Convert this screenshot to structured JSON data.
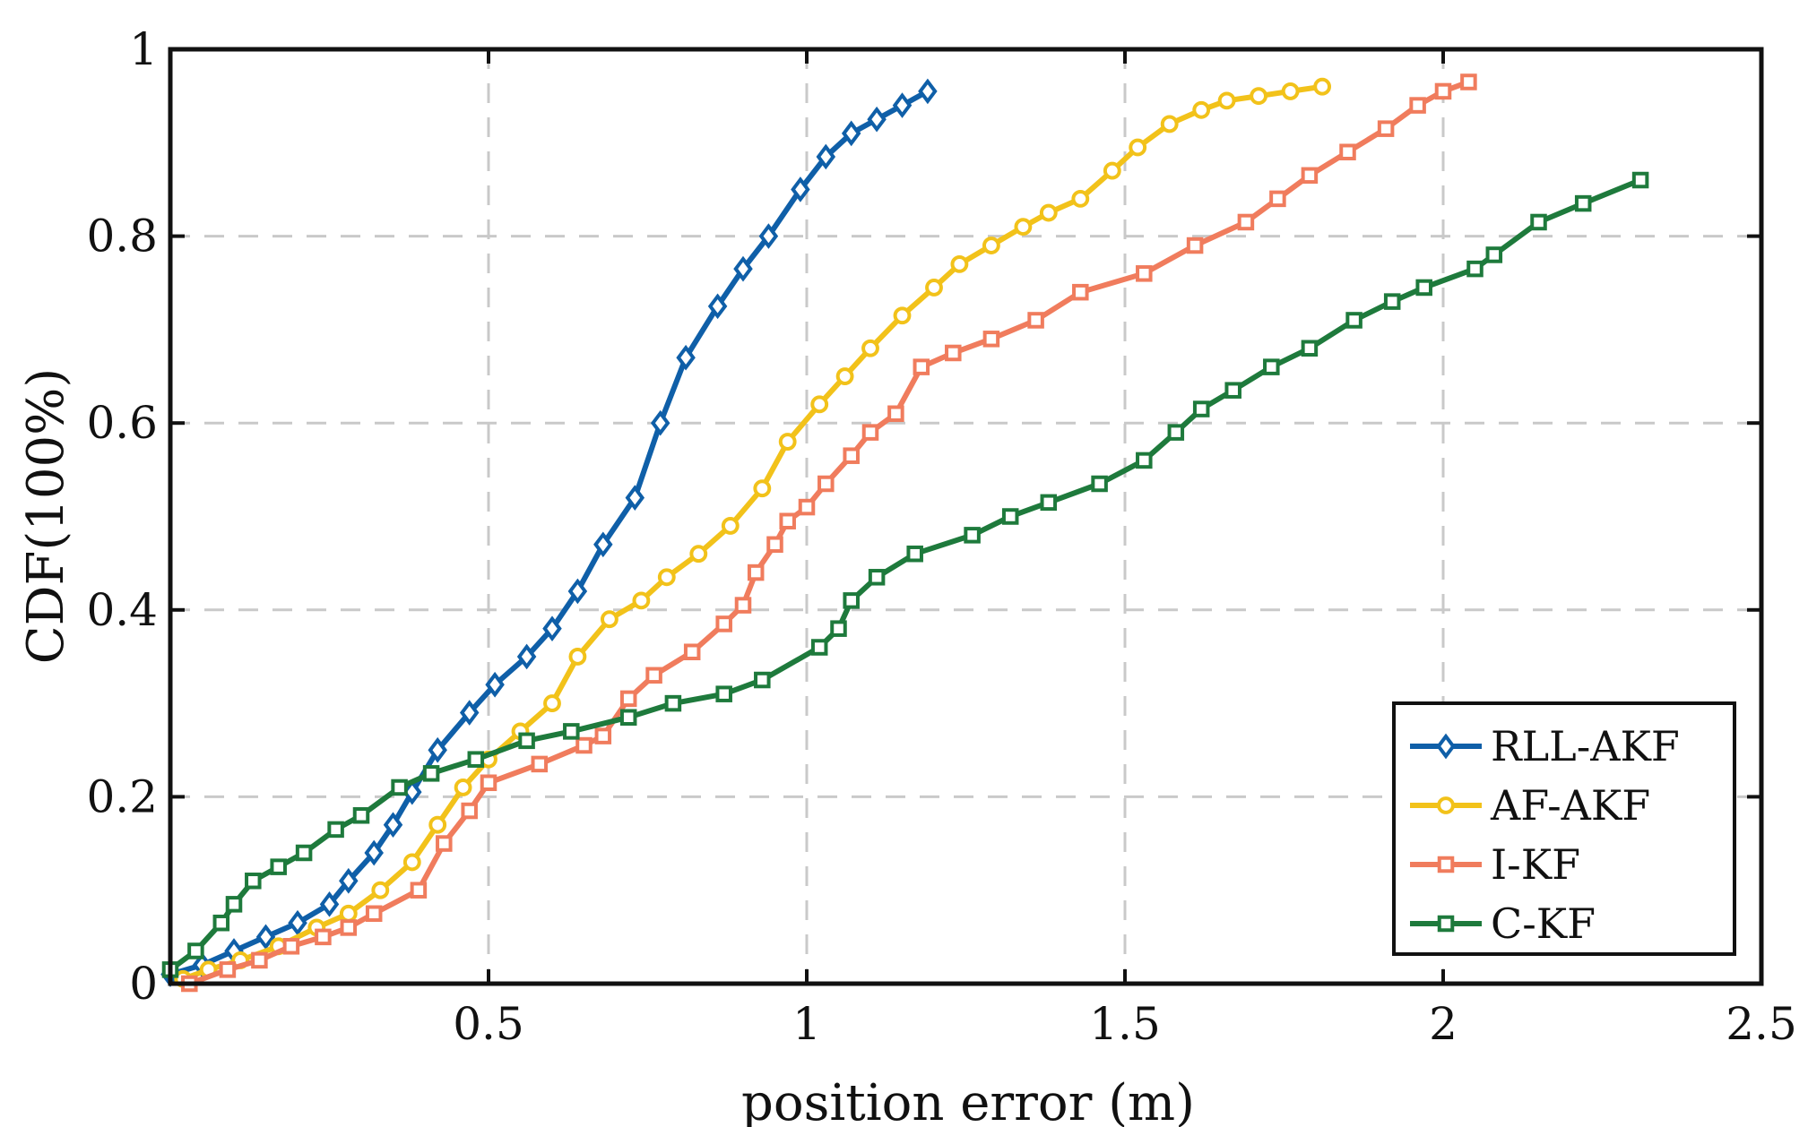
{
  "chart_data": {
    "type": "line",
    "title": "",
    "xlabel": "position error (m)",
    "ylabel": "CDF(100%)",
    "xlim": [
      0,
      2.5
    ],
    "ylim": [
      0,
      1
    ],
    "xticks": [
      0.5,
      1,
      1.5,
      2,
      2.5
    ],
    "xtick_labels": [
      "0.5",
      "1",
      "1.5",
      "2",
      "2.5"
    ],
    "yticks": [
      0,
      0.2,
      0.4,
      0.6,
      0.8,
      1
    ],
    "ytick_labels": [
      "0",
      "0.2",
      "0.4",
      "0.6",
      "0.8",
      "1"
    ],
    "grid": true,
    "legend_position": "bottom-right",
    "series": [
      {
        "name": "RLL-AKF",
        "color": "#0F5FA8",
        "marker": "diamond",
        "x": [
          0.0,
          0.05,
          0.1,
          0.15,
          0.2,
          0.25,
          0.28,
          0.32,
          0.35,
          0.38,
          0.42,
          0.47,
          0.51,
          0.56,
          0.6,
          0.64,
          0.68,
          0.73,
          0.77,
          0.81,
          0.86,
          0.9,
          0.94,
          0.99,
          1.03,
          1.07,
          1.11,
          1.15,
          1.19
        ],
        "y": [
          0.01,
          0.02,
          0.035,
          0.05,
          0.065,
          0.085,
          0.11,
          0.14,
          0.17,
          0.205,
          0.25,
          0.29,
          0.32,
          0.35,
          0.38,
          0.42,
          0.47,
          0.52,
          0.6,
          0.67,
          0.725,
          0.765,
          0.8,
          0.85,
          0.885,
          0.91,
          0.925,
          0.94,
          0.955
        ]
      },
      {
        "name": "AF-AKF",
        "color": "#F2C21A",
        "marker": "circle",
        "x": [
          0.02,
          0.06,
          0.11,
          0.17,
          0.23,
          0.28,
          0.33,
          0.38,
          0.42,
          0.46,
          0.5,
          0.55,
          0.6,
          0.64,
          0.69,
          0.74,
          0.78,
          0.83,
          0.88,
          0.93,
          0.97,
          1.02,
          1.06,
          1.1,
          1.15,
          1.2,
          1.24,
          1.29,
          1.34,
          1.38,
          1.43,
          1.48,
          1.52,
          1.57,
          1.62,
          1.66,
          1.71,
          1.76,
          1.81
        ],
        "y": [
          0.005,
          0.015,
          0.025,
          0.04,
          0.06,
          0.075,
          0.1,
          0.13,
          0.17,
          0.21,
          0.24,
          0.27,
          0.3,
          0.35,
          0.39,
          0.41,
          0.435,
          0.46,
          0.49,
          0.53,
          0.58,
          0.62,
          0.65,
          0.68,
          0.715,
          0.745,
          0.77,
          0.79,
          0.81,
          0.825,
          0.84,
          0.87,
          0.895,
          0.92,
          0.935,
          0.945,
          0.95,
          0.955,
          0.96
        ]
      },
      {
        "name": "I-KF",
        "color": "#F07C5D",
        "marker": "square",
        "x": [
          0.03,
          0.09,
          0.14,
          0.19,
          0.24,
          0.28,
          0.32,
          0.39,
          0.43,
          0.47,
          0.5,
          0.58,
          0.65,
          0.68,
          0.72,
          0.76,
          0.82,
          0.87,
          0.9,
          0.92,
          0.95,
          0.97,
          1.0,
          1.03,
          1.07,
          1.1,
          1.14,
          1.18,
          1.23,
          1.29,
          1.36,
          1.43,
          1.53,
          1.61,
          1.69,
          1.74,
          1.79,
          1.85,
          1.91,
          1.96,
          2.0,
          2.04
        ],
        "y": [
          0.0,
          0.015,
          0.025,
          0.04,
          0.05,
          0.06,
          0.075,
          0.1,
          0.15,
          0.185,
          0.215,
          0.235,
          0.255,
          0.265,
          0.305,
          0.33,
          0.355,
          0.385,
          0.405,
          0.44,
          0.47,
          0.495,
          0.51,
          0.535,
          0.565,
          0.59,
          0.61,
          0.66,
          0.675,
          0.69,
          0.71,
          0.74,
          0.76,
          0.79,
          0.815,
          0.84,
          0.865,
          0.89,
          0.915,
          0.94,
          0.955,
          0.965
        ]
      },
      {
        "name": "C-KF",
        "color": "#1E7A3C",
        "marker": "square",
        "x": [
          0.0,
          0.04,
          0.08,
          0.1,
          0.13,
          0.17,
          0.21,
          0.26,
          0.3,
          0.36,
          0.41,
          0.48,
          0.56,
          0.63,
          0.72,
          0.79,
          0.87,
          0.93,
          1.02,
          1.05,
          1.07,
          1.11,
          1.17,
          1.26,
          1.32,
          1.38,
          1.46,
          1.53,
          1.58,
          1.62,
          1.67,
          1.73,
          1.79,
          1.86,
          1.92,
          1.97,
          2.05,
          2.08,
          2.15,
          2.22,
          2.31
        ],
        "y": [
          0.015,
          0.035,
          0.065,
          0.085,
          0.11,
          0.125,
          0.14,
          0.165,
          0.18,
          0.21,
          0.225,
          0.24,
          0.26,
          0.27,
          0.285,
          0.3,
          0.31,
          0.325,
          0.36,
          0.38,
          0.41,
          0.435,
          0.46,
          0.48,
          0.5,
          0.515,
          0.535,
          0.56,
          0.59,
          0.615,
          0.635,
          0.66,
          0.68,
          0.71,
          0.73,
          0.745,
          0.765,
          0.78,
          0.815,
          0.835,
          0.86
        ]
      }
    ]
  }
}
